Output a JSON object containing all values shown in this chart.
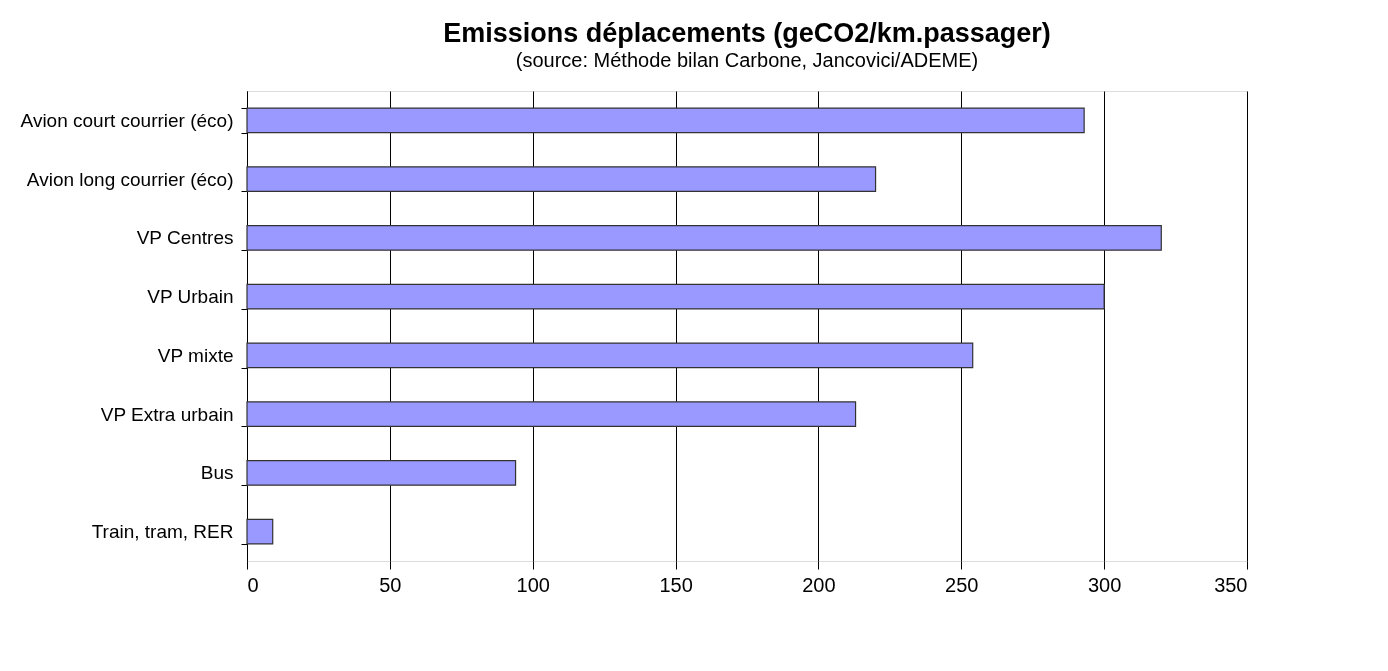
{
  "chart_data": {
    "type": "bar",
    "orientation": "horizontal",
    "title": "Emissions déplacements (geCO2/km.passager)",
    "subtitle": "(source: Méthode bilan Carbone, Jancovici/ADEME)",
    "categories": [
      "Avion court courrier (éco)",
      "Avion long courrier (éco)",
      "VP Centres",
      "VP Urbain",
      "VP mixte",
      "VP Extra urbain",
      "Bus",
      "Train, tram, RER"
    ],
    "values": [
      293,
      220,
      320,
      300,
      254,
      213,
      94,
      9
    ],
    "color": "#9999ff",
    "xlim": [
      0,
      350
    ],
    "xticks": [
      0,
      50,
      100,
      150,
      200,
      250,
      300,
      350
    ],
    "grid": "x"
  }
}
